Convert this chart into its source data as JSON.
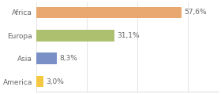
{
  "categories": [
    "America",
    "Asia",
    "Europa",
    "Africa"
  ],
  "values": [
    3.0,
    8.3,
    31.1,
    57.6
  ],
  "labels": [
    "3,0%",
    "8,3%",
    "31,1%",
    "57,6%"
  ],
  "bar_colors": [
    "#f5c842",
    "#7b8fc7",
    "#adc070",
    "#e8a870"
  ],
  "background_color": "#ffffff",
  "xlim": [
    0,
    72
  ],
  "bar_height": 0.5,
  "label_fontsize": 6.5,
  "tick_fontsize": 6.5,
  "grid_color": "#e0e0e0",
  "text_color": "#666666"
}
